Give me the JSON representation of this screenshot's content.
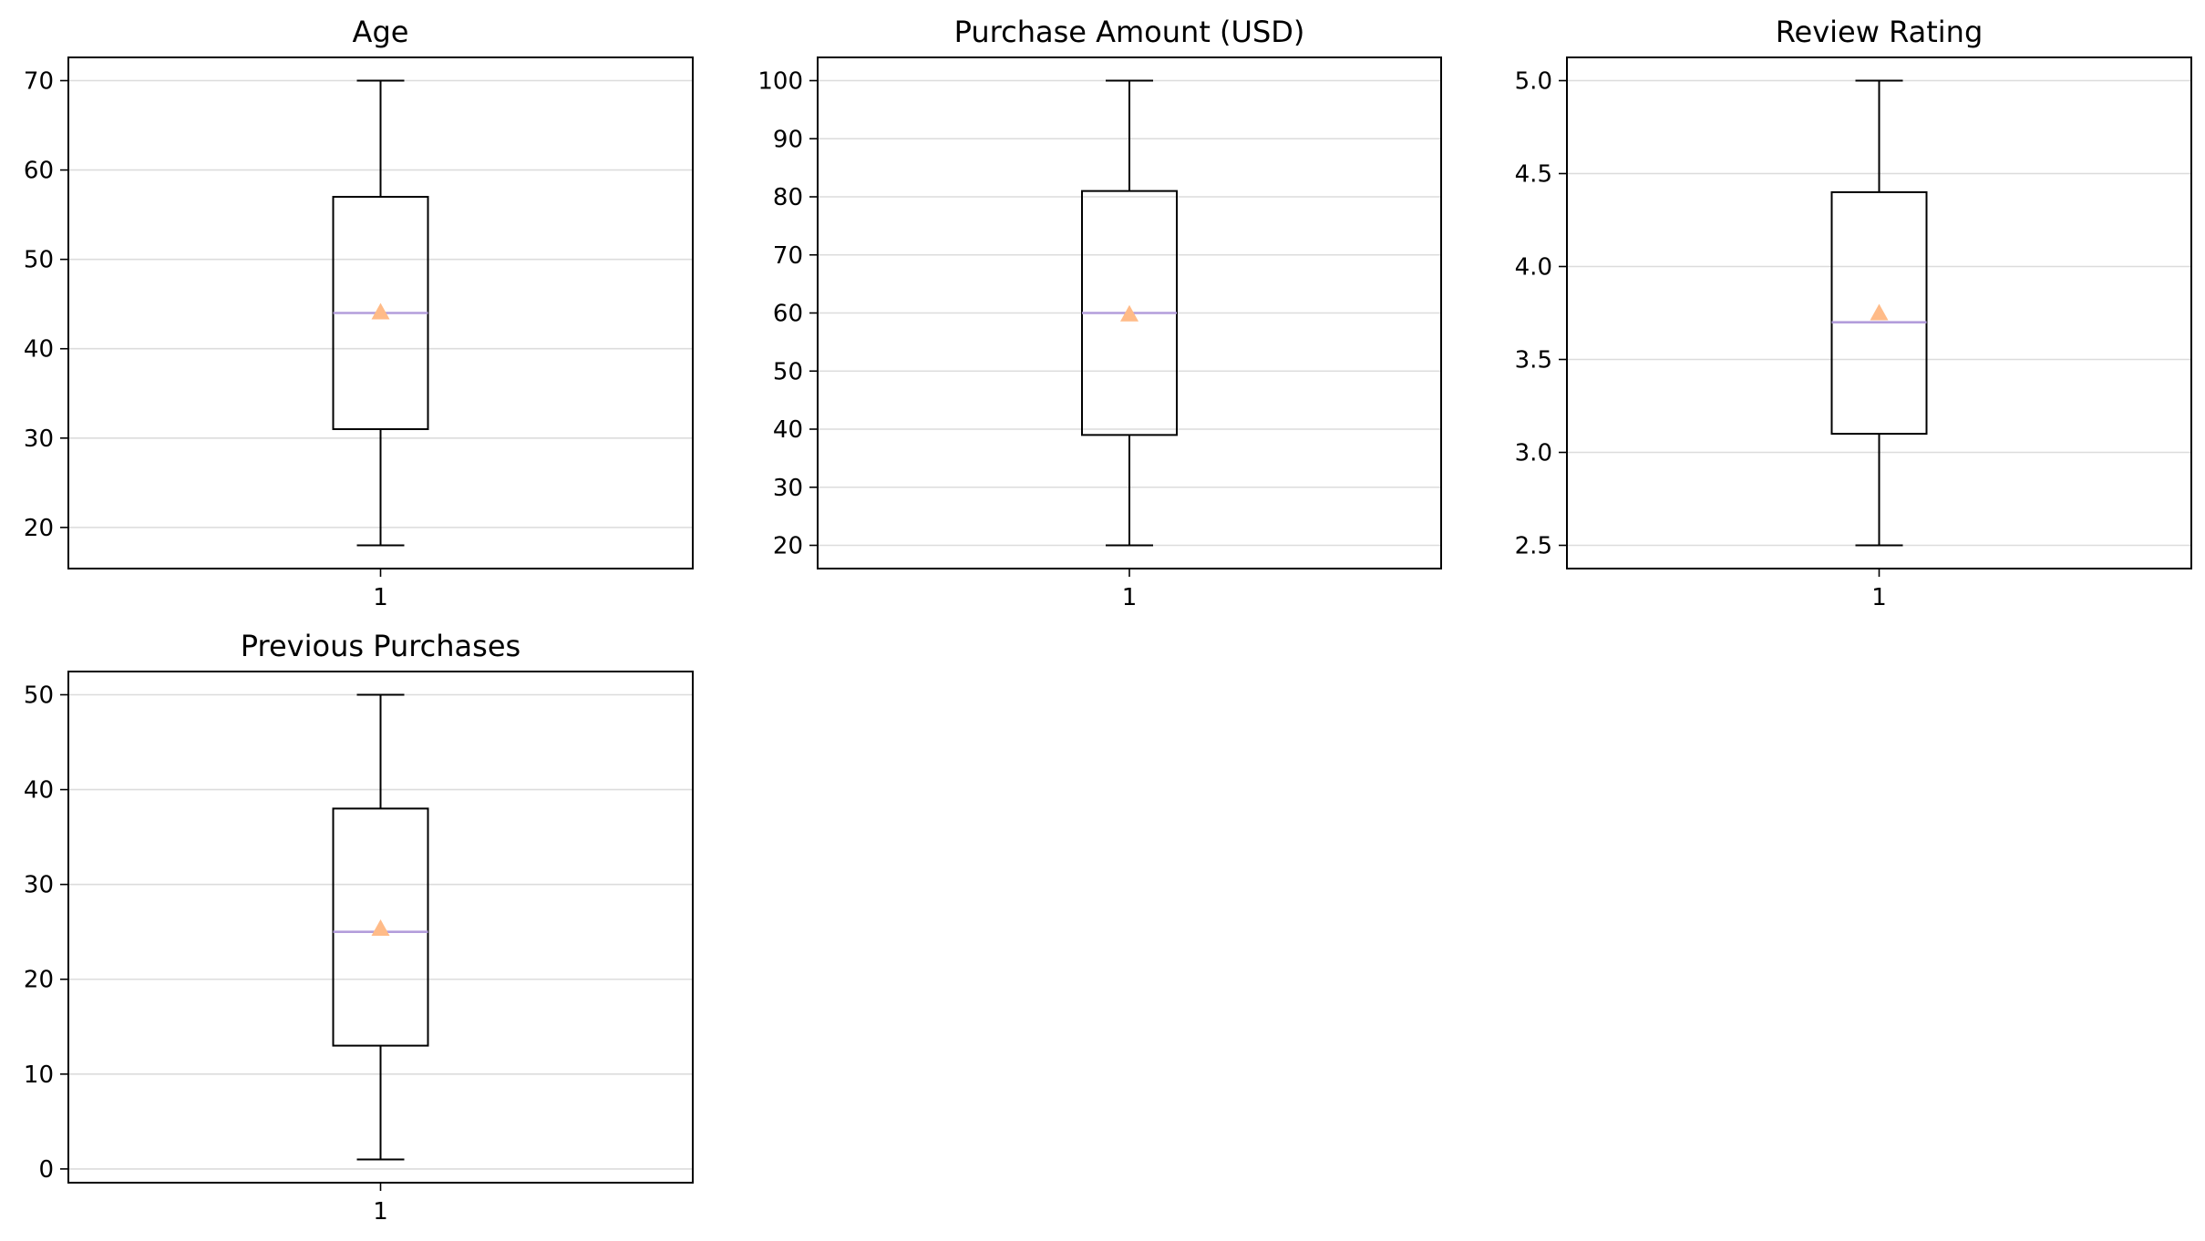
{
  "colors": {
    "box": "#000000",
    "median": "#b39ddb",
    "mean": "#ffbb88",
    "grid": "#dcdcdc",
    "frame": "#000000"
  },
  "chart_data": [
    {
      "type": "box",
      "title": "Age",
      "categories": [
        "1"
      ],
      "yticks": [
        "20",
        "30",
        "40",
        "50",
        "60",
        "70"
      ],
      "ytick_values": [
        20,
        30,
        40,
        50,
        60,
        70
      ],
      "ylim": [
        15.4,
        72.6
      ],
      "grid": "y",
      "box": {
        "whisker_low": 18,
        "q1": 31,
        "median": 44,
        "q3": 57,
        "whisker_high": 70,
        "mean": 44.1
      }
    },
    {
      "type": "box",
      "title": "Purchase Amount (USD)",
      "categories": [
        "1"
      ],
      "yticks": [
        "20",
        "30",
        "40",
        "50",
        "60",
        "70",
        "80",
        "90",
        "100"
      ],
      "ytick_values": [
        20,
        30,
        40,
        50,
        60,
        70,
        80,
        90,
        100
      ],
      "ylim": [
        16,
        104
      ],
      "grid": "y",
      "box": {
        "whisker_low": 20,
        "q1": 39,
        "median": 60,
        "q3": 81,
        "whisker_high": 100,
        "mean": 59.8
      }
    },
    {
      "type": "box",
      "title": "Review Rating",
      "categories": [
        "1"
      ],
      "yticks": [
        "2.5",
        "3.0",
        "3.5",
        "4.0",
        "4.5",
        "5.0"
      ],
      "ytick_values": [
        2.5,
        3.0,
        3.5,
        4.0,
        4.5,
        5.0
      ],
      "ylim": [
        2.375,
        5.125
      ],
      "grid": "y",
      "box": {
        "whisker_low": 2.5,
        "q1": 3.1,
        "median": 3.7,
        "q3": 4.4,
        "whisker_high": 5.0,
        "mean": 3.75
      }
    },
    {
      "type": "box",
      "title": "Previous Purchases",
      "categories": [
        "1"
      ],
      "yticks": [
        "0",
        "10",
        "20",
        "30",
        "40",
        "50"
      ],
      "ytick_values": [
        0,
        10,
        20,
        30,
        40,
        50
      ],
      "ylim": [
        -1.45,
        52.45
      ],
      "grid": "y",
      "box": {
        "whisker_low": 1,
        "q1": 13,
        "median": 25,
        "q3": 38,
        "whisker_high": 50,
        "mean": 25.35
      }
    }
  ]
}
